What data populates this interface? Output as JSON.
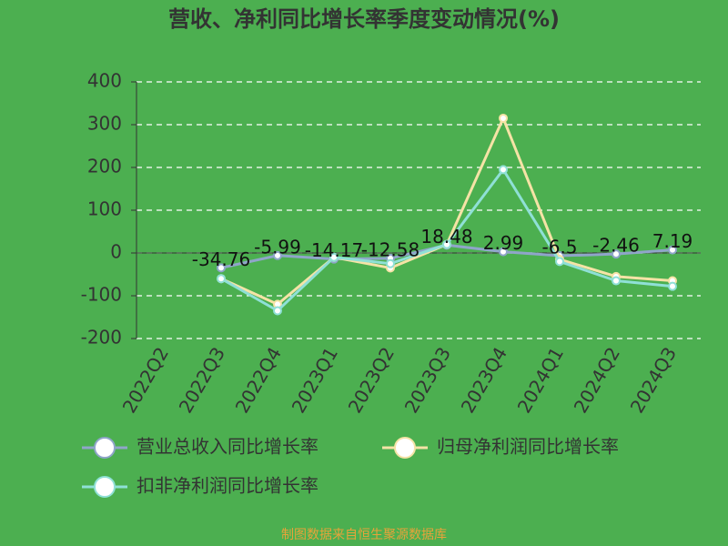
{
  "chart_data": {
    "type": "line",
    "title": "营收、净利同比增长率季度变动情况(%)",
    "categories": [
      "2022Q2",
      "2022Q3",
      "2022Q4",
      "2023Q1",
      "2023Q2",
      "2023Q3",
      "2023Q4",
      "2024Q1",
      "2024Q2",
      "2024Q3"
    ],
    "series": [
      {
        "name": "营业总收入同比增长率",
        "color": "#8fa5c9",
        "values": [
          null,
          -34.76,
          -5.99,
          -14.17,
          -12.58,
          18.48,
          2.99,
          -6.5,
          -2.46,
          7.19
        ]
      },
      {
        "name": "归母净利润同比增长率",
        "color": "#f5e3a6",
        "values": [
          null,
          -60,
          -120,
          -10,
          -35,
          20,
          315,
          -15,
          -55,
          -65
        ]
      },
      {
        "name": "扣非净利润同比增长率",
        "color": "#8fe0d6",
        "values": [
          null,
          -60,
          -135,
          -10,
          -25,
          20,
          195,
          -20,
          -65,
          -78
        ]
      }
    ],
    "ylim": [
      -200,
      400
    ],
    "yticks": [
      -200,
      -100,
      0,
      100,
      200,
      300,
      400
    ],
    "grid": true,
    "source": "制图数据来自恒生聚源数据库"
  }
}
